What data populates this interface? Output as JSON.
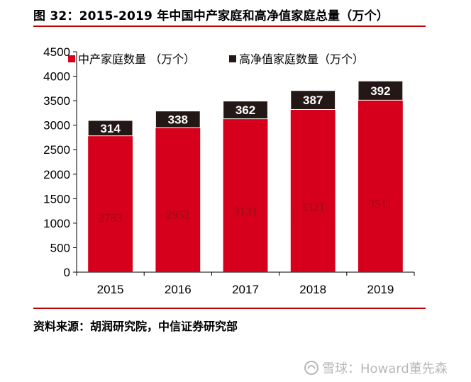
{
  "figure": {
    "title": "图 32：2015-2019 年中国中产家庭和高净值家庭总量（万个）",
    "source": "资料来源：胡润研究院，中信证券研究部",
    "watermark": "雪球：Howard董先森"
  },
  "colors": {
    "series_main": "#d6001c",
    "series_top": "#231815",
    "rule": "#c00000",
    "axis": "#000000"
  },
  "chart_data": {
    "type": "bar",
    "stacked": true,
    "categories": [
      "2015",
      "2016",
      "2017",
      "2018",
      "2019"
    ],
    "series": [
      {
        "name": "中产家庭数量 （万个）",
        "values": [
          2783,
          2952,
          3131,
          3321,
          3511
        ]
      },
      {
        "name": "高净值家庭数量（万个）",
        "values": [
          314,
          338,
          362,
          387,
          392
        ]
      }
    ],
    "ylim": [
      0,
      4500
    ],
    "yticks": [
      0,
      500,
      1000,
      1500,
      2000,
      2500,
      3000,
      3500,
      4000,
      4500
    ],
    "grid": false,
    "legend_position": "top-left",
    "title": "",
    "xlabel": "",
    "ylabel": ""
  }
}
